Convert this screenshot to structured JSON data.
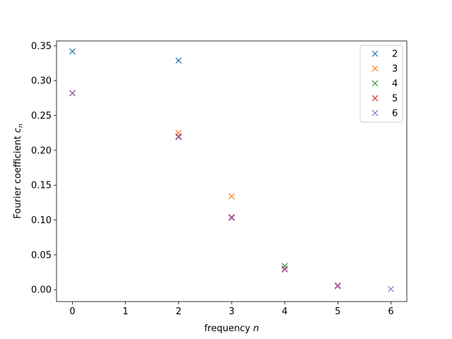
{
  "chart_data": {
    "type": "scatter",
    "xlabel": "frequency",
    "xlabel_var": "n",
    "ylabel": "Fourier coefficient",
    "ylabel_var": "c",
    "ylabel_sub": "n",
    "xlim": [
      -0.3,
      6.3
    ],
    "ylim": [
      -0.017,
      0.357
    ],
    "xticks": [
      0,
      1,
      2,
      3,
      4,
      5,
      6
    ],
    "xtick_labels": [
      "0",
      "1",
      "2",
      "3",
      "4",
      "5",
      "6"
    ],
    "yticks": [
      0.0,
      0.05,
      0.1,
      0.15,
      0.2,
      0.25,
      0.3,
      0.35
    ],
    "ytick_labels": [
      "0.00",
      "0.05",
      "0.10",
      "0.15",
      "0.20",
      "0.25",
      "0.30",
      "0.35"
    ],
    "grid": false,
    "legend": "top-right",
    "marker": "x",
    "series": [
      {
        "name": "2",
        "color": "#1f77b4",
        "points": [
          [
            0,
            0.342
          ],
          [
            2,
            0.329
          ]
        ]
      },
      {
        "name": "3",
        "color": "#ff7f0e",
        "points": [
          [
            0,
            0.282
          ],
          [
            2,
            0.225
          ],
          [
            3,
            0.134
          ]
        ]
      },
      {
        "name": "4",
        "color": "#2ca02c",
        "points": [
          [
            0,
            0.282
          ],
          [
            2,
            0.22
          ],
          [
            3,
            0.104
          ],
          [
            4,
            0.034
          ]
        ]
      },
      {
        "name": "5",
        "color": "#d62728",
        "points": [
          [
            0,
            0.282
          ],
          [
            2,
            0.22
          ],
          [
            3,
            0.104
          ],
          [
            4,
            0.03
          ],
          [
            5,
            0.006
          ]
        ]
      },
      {
        "name": "6",
        "color": "#9467bd",
        "points": [
          [
            0,
            0.282
          ],
          [
            2,
            0.219
          ],
          [
            3,
            0.103
          ],
          [
            4,
            0.029
          ],
          [
            5,
            0.005
          ],
          [
            6,
            0.001
          ]
        ]
      }
    ]
  }
}
